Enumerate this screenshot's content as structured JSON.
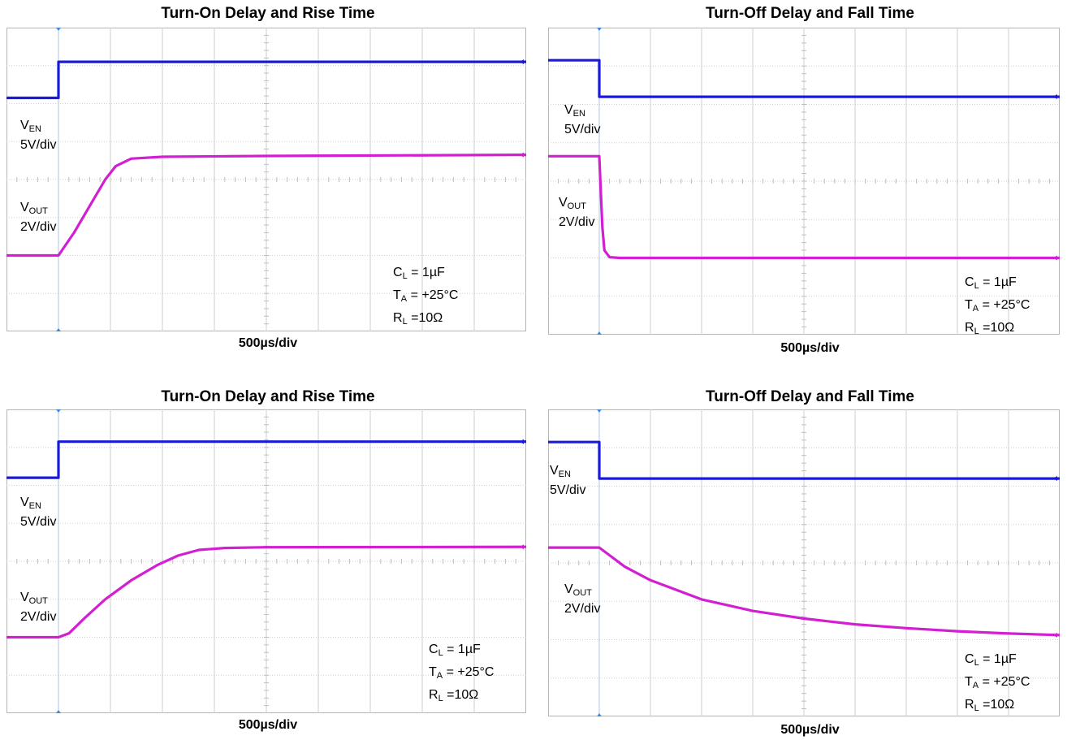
{
  "chart_data": [
    {
      "type": "line",
      "title": "Turn-On Delay and Rise Time",
      "xlabel": "500µs/div",
      "xlim_div": [
        0,
        10
      ],
      "ylim_div": [
        0,
        8
      ],
      "event_div": 1.0,
      "channel_labels": [
        {
          "name_main": "V",
          "name_sub": "EN",
          "scale": "5V/div"
        },
        {
          "name_main": "V",
          "name_sub": "OUT",
          "scale": "2V/div"
        }
      ],
      "conditions": [
        {
          "main": "C",
          "sub": "L",
          "rest": " = 1µF"
        },
        {
          "main": "T",
          "sub": "A",
          "rest": " = +25°C"
        },
        {
          "main": "R",
          "sub": "L",
          "rest": " =10Ω"
        }
      ],
      "series": [
        {
          "color": "#1a1adb",
          "x": [
            0,
            1.0,
            1.0,
            10
          ],
          "y": [
            6.15,
            6.15,
            7.1,
            7.1
          ]
        },
        {
          "color": "#d21fd2",
          "x": [
            0,
            1.0,
            1.3,
            1.6,
            1.9,
            2.1,
            2.4,
            3.0,
            5,
            10
          ],
          "y": [
            2.0,
            2.0,
            2.6,
            3.3,
            4.0,
            4.35,
            4.55,
            4.6,
            4.62,
            4.65
          ]
        }
      ]
    },
    {
      "type": "line",
      "title": "Turn-Off Delay and Fall Time",
      "xlabel": "500µs/div",
      "xlim_div": [
        0,
        10
      ],
      "ylim_div": [
        0,
        8
      ],
      "event_div": 1.0,
      "channel_labels": [
        {
          "name_main": "V",
          "name_sub": "EN",
          "scale": "5V/div"
        },
        {
          "name_main": "V",
          "name_sub": "OUT",
          "scale": "2V/div"
        }
      ],
      "conditions": [
        {
          "main": "C",
          "sub": "L",
          "rest": " = 1µF"
        },
        {
          "main": "T",
          "sub": "A",
          "rest": " = +25°C"
        },
        {
          "main": "R",
          "sub": "L",
          "rest": " =10Ω"
        }
      ],
      "series": [
        {
          "color": "#1a1adb",
          "x": [
            0,
            1.0,
            1.0,
            10
          ],
          "y": [
            7.15,
            7.15,
            6.2,
            6.2
          ]
        },
        {
          "color": "#d21fd2",
          "x": [
            0,
            1.0,
            1.02,
            1.06,
            1.1,
            1.2,
            1.4,
            10
          ],
          "y": [
            4.65,
            4.65,
            4.0,
            2.8,
            2.2,
            2.02,
            2.0,
            2.0
          ]
        }
      ]
    },
    {
      "type": "line",
      "title": "Turn-On Delay and Rise Time",
      "xlabel": "500µs/div",
      "xlim_div": [
        0,
        10
      ],
      "ylim_div": [
        0,
        8
      ],
      "event_div": 1.0,
      "channel_labels": [
        {
          "name_main": "V",
          "name_sub": "EN",
          "scale": "5V/div"
        },
        {
          "name_main": "V",
          "name_sub": "OUT",
          "scale": "2V/div"
        }
      ],
      "conditions": [
        {
          "main": "C",
          "sub": "L",
          "rest": " = 1µF"
        },
        {
          "main": "T",
          "sub": "A",
          "rest": " = +25°C"
        },
        {
          "main": "R",
          "sub": "L",
          "rest": " =10Ω"
        }
      ],
      "series": [
        {
          "color": "#1a1adb",
          "x": [
            0,
            1.0,
            1.0,
            10
          ],
          "y": [
            6.2,
            6.2,
            7.15,
            7.15
          ]
        },
        {
          "color": "#d21fd2",
          "x": [
            0,
            1.0,
            1.2,
            1.5,
            1.9,
            2.4,
            2.9,
            3.3,
            3.7,
            4.2,
            5,
            10
          ],
          "y": [
            2.0,
            2.0,
            2.1,
            2.5,
            3.0,
            3.5,
            3.9,
            4.15,
            4.3,
            4.35,
            4.37,
            4.38
          ]
        }
      ]
    },
    {
      "type": "line",
      "title": "Turn-Off Delay and Fall Time",
      "xlabel": "500µs/div",
      "xlim_div": [
        0,
        10
      ],
      "ylim_div": [
        0,
        8
      ],
      "event_div": 1.0,
      "channel_labels": [
        {
          "name_main": "V",
          "name_sub": "EN",
          "scale": "5V/div"
        },
        {
          "name_main": "V",
          "name_sub": "OUT",
          "scale": "2V/div"
        }
      ],
      "conditions": [
        {
          "main": "C",
          "sub": "L",
          "rest": " = 1µF"
        },
        {
          "main": "T",
          "sub": "A",
          "rest": " = +25°C"
        },
        {
          "main": "R",
          "sub": "L",
          "rest": " =10Ω"
        }
      ],
      "series": [
        {
          "color": "#1a1adb",
          "x": [
            0,
            1.0,
            1.0,
            10
          ],
          "y": [
            7.15,
            7.15,
            6.2,
            6.2
          ]
        },
        {
          "color": "#d21fd2",
          "x": [
            0,
            1.0,
            1.5,
            2.0,
            3.0,
            4.0,
            5.0,
            6.0,
            7.0,
            8.0,
            9.0,
            10.0
          ],
          "y": [
            4.4,
            4.4,
            3.9,
            3.55,
            3.05,
            2.75,
            2.55,
            2.4,
            2.3,
            2.22,
            2.16,
            2.12
          ]
        }
      ]
    }
  ]
}
